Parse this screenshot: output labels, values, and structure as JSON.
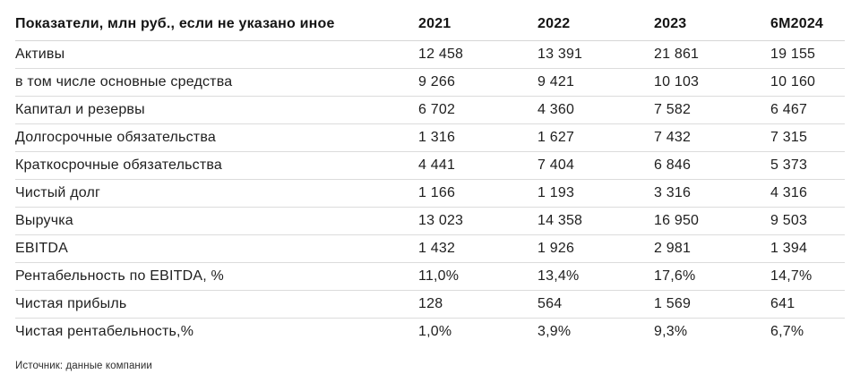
{
  "table": {
    "header": {
      "label": "Показатели, млн руб., если не указано иное",
      "years": [
        "2021",
        "2022",
        "2023",
        "6М2024"
      ]
    },
    "rows": [
      {
        "label": "Активы",
        "values": [
          "12 458",
          "13 391",
          "21 861",
          "19 155"
        ]
      },
      {
        "label": "в том числе основные средства",
        "values": [
          "9 266",
          "9 421",
          "10 103",
          "10 160"
        ]
      },
      {
        "label": "Капитал и резервы",
        "values": [
          "6 702",
          "4 360",
          "7 582",
          "6 467"
        ]
      },
      {
        "label": "Долгосрочные обязательства",
        "values": [
          "1 316",
          "1 627",
          "7 432",
          "7 315"
        ]
      },
      {
        "label": "Краткосрочные обязательства",
        "values": [
          "4 441",
          "7 404",
          "6 846",
          "5 373"
        ]
      },
      {
        "label": "Чистый долг",
        "values": [
          "1 166",
          "1 193",
          "3 316",
          "4 316"
        ]
      },
      {
        "label": "Выручка",
        "values": [
          "13 023",
          "14 358",
          "16 950",
          "9 503"
        ]
      },
      {
        "label": "EBITDA",
        "values": [
          "1 432",
          "1 926",
          "2 981",
          "1 394"
        ]
      },
      {
        "label": "Рентабельность по EBITDA, %",
        "values": [
          "11,0%",
          "13,4%",
          "17,6%",
          "14,7%"
        ]
      },
      {
        "label": "Чистая прибыль",
        "values": [
          "128",
          "564",
          "1 569",
          "641"
        ]
      },
      {
        "label": "Чистая рентабельность,%",
        "values": [
          "1,0%",
          "3,9%",
          "9,3%",
          "6,7%"
        ]
      }
    ],
    "source": "Источник: данные компании"
  },
  "chart_data": {
    "type": "table",
    "title": "Показатели, млн руб., если не указано иное",
    "columns": [
      "2021",
      "2022",
      "2023",
      "6М2024"
    ],
    "series": [
      {
        "name": "Активы",
        "values": [
          12458,
          13391,
          21861,
          19155
        ]
      },
      {
        "name": "в том числе основные средства",
        "values": [
          9266,
          9421,
          10103,
          10160
        ]
      },
      {
        "name": "Капитал и резервы",
        "values": [
          6702,
          4360,
          7582,
          6467
        ]
      },
      {
        "name": "Долгосрочные обязательства",
        "values": [
          1316,
          1627,
          7432,
          7315
        ]
      },
      {
        "name": "Краткосрочные обязательства",
        "values": [
          4441,
          7404,
          6846,
          5373
        ]
      },
      {
        "name": "Чистый долг",
        "values": [
          1166,
          1193,
          3316,
          4316
        ]
      },
      {
        "name": "Выручка",
        "values": [
          13023,
          14358,
          16950,
          9503
        ]
      },
      {
        "name": "EBITDA",
        "values": [
          1432,
          1926,
          2981,
          1394
        ]
      },
      {
        "name": "Рентабельность по EBITDA, %",
        "values": [
          "11,0%",
          "13,4%",
          "17,6%",
          "14,7%"
        ]
      },
      {
        "name": "Чистая прибыль",
        "values": [
          128,
          564,
          1569,
          641
        ]
      },
      {
        "name": "Чистая рентабельность,%",
        "values": [
          "1,0%",
          "3,9%",
          "9,3%",
          "6,7%"
        ]
      }
    ]
  },
  "colors": {
    "background": "#ffffff",
    "text": "#1c1c1c",
    "divider": "#dcdcdc"
  }
}
